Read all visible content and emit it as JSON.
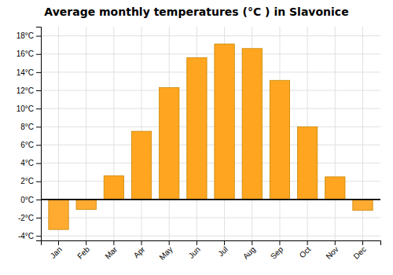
{
  "chart_data": {
    "type": "bar",
    "title": "Average monthly temperatures (°C ) in Slavonice",
    "categories": [
      "Jan",
      "Feb",
      "Mar",
      "Apr",
      "May",
      "Jun",
      "Jul",
      "Aug",
      "Sep",
      "Oct",
      "Nov",
      "Dec"
    ],
    "values": [
      -3.3,
      -1.1,
      2.6,
      7.5,
      12.3,
      15.6,
      17.1,
      16.6,
      13.1,
      8.0,
      2.5,
      -1.2
    ],
    "colors": [
      "#FFAA30",
      "#FFAA30",
      "#FFA520",
      "#FFA520",
      "#FFA520",
      "#FFA520",
      "#FFA520",
      "#FFA520",
      "#FFA520",
      "#FFA520",
      "#FFA520",
      "#FFAA30"
    ],
    "ylim": [
      -4.5,
      19
    ],
    "yticks": [
      {
        "value": -4,
        "label": "-4°C"
      },
      {
        "value": -2,
        "label": "-2°C"
      },
      {
        "value": 0,
        "label": "0°C"
      },
      {
        "value": 2,
        "label": "2°C"
      },
      {
        "value": 4,
        "label": "4°C"
      },
      {
        "value": 6,
        "label": "6°C"
      },
      {
        "value": 8,
        "label": "8°C"
      },
      {
        "value": 10,
        "label": "10°C"
      },
      {
        "value": 12,
        "label": "12°C"
      },
      {
        "value": 14,
        "label": "14°C"
      },
      {
        "value": 16,
        "label": "16°C"
      },
      {
        "value": 18,
        "label": "18°C"
      }
    ],
    "grid": true
  }
}
